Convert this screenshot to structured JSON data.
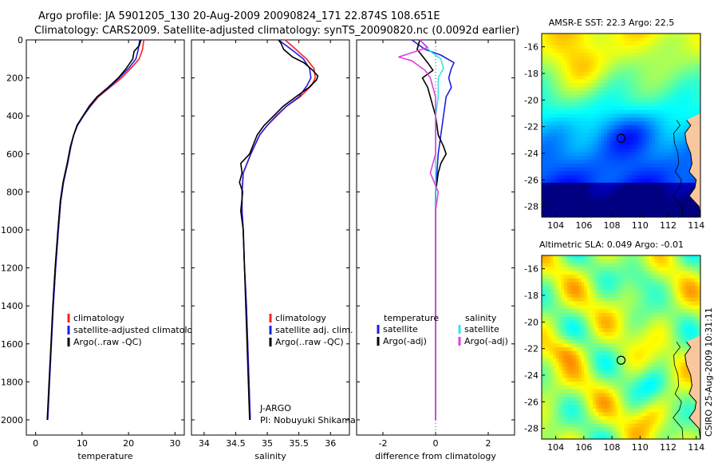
{
  "header": {
    "line1": "Argo profile: JA 5901205_130 20-Aug-2009 20090824_171 22.874S 108.651E",
    "line2": "Climatology: CARS2009. Satellite-adjusted climatology: synTS_20090820.nc (0.0092d earlier)"
  },
  "side_label": "CSIRO 25-Aug-2009 10:31:11",
  "colors": {
    "climatology": "#ff2020",
    "satellite": "#1e1ee6",
    "argo": "#000000",
    "sal_satellite": "#30e8e8",
    "sal_argo": "#e040e0",
    "land": "#f9c79e"
  },
  "chart_data": [
    {
      "type": "line",
      "xlabel": "temperature",
      "xlim": [
        -2,
        32
      ],
      "xticks": [
        0,
        10,
        20,
        30
      ],
      "ylim": [
        2080,
        0
      ],
      "yticks": [
        0,
        200,
        400,
        600,
        800,
        1000,
        1200,
        1400,
        1600,
        1800,
        2000
      ],
      "legend": [
        "climatology",
        "satellite-adjusted climatology",
        "Argo(..raw -QC)"
      ],
      "series": [
        {
          "name": "climatology",
          "color": "#ff2020",
          "points": [
            [
              23.3,
              0
            ],
            [
              23.0,
              50
            ],
            [
              22.3,
              100
            ],
            [
              20.5,
              150
            ],
            [
              18.5,
              200
            ],
            [
              16.0,
              250
            ],
            [
              13.5,
              300
            ],
            [
              11.8,
              350
            ],
            [
              10.3,
              400
            ],
            [
              9.0,
              450
            ],
            [
              8.2,
              500
            ],
            [
              7.6,
              560
            ],
            [
              6.9,
              650
            ],
            [
              6.0,
              750
            ],
            [
              5.4,
              850
            ],
            [
              4.9,
              1000
            ],
            [
              4.3,
              1200
            ],
            [
              3.8,
              1400
            ],
            [
              3.4,
              1600
            ],
            [
              3.0,
              1800
            ],
            [
              2.6,
              2000
            ]
          ]
        },
        {
          "name": "satellite",
          "color": "#1e1ee6",
          "points": [
            [
              22.4,
              0
            ],
            [
              22.1,
              50
            ],
            [
              21.6,
              100
            ],
            [
              20.0,
              150
            ],
            [
              18.0,
              200
            ],
            [
              15.8,
              250
            ],
            [
              13.3,
              300
            ],
            [
              11.7,
              350
            ],
            [
              10.3,
              400
            ],
            [
              9.0,
              450
            ],
            [
              8.2,
              500
            ],
            [
              7.6,
              560
            ],
            [
              6.9,
              650
            ],
            [
              6.0,
              750
            ],
            [
              5.4,
              850
            ],
            [
              4.9,
              1000
            ],
            [
              4.3,
              1200
            ],
            [
              3.8,
              1400
            ],
            [
              3.4,
              1600
            ],
            [
              3.0,
              1800
            ],
            [
              2.6,
              2000
            ]
          ]
        },
        {
          "name": "argo",
          "color": "#000000",
          "points": [
            [
              22.7,
              0
            ],
            [
              22.3,
              30
            ],
            [
              21.2,
              60
            ],
            [
              20.9,
              100
            ],
            [
              19.5,
              150
            ],
            [
              17.8,
              200
            ],
            [
              15.6,
              250
            ],
            [
              13.2,
              300
            ],
            [
              11.5,
              350
            ],
            [
              10.2,
              400
            ],
            [
              8.9,
              450
            ],
            [
              8.2,
              500
            ],
            [
              7.5,
              560
            ],
            [
              6.8,
              650
            ],
            [
              5.9,
              750
            ],
            [
              5.3,
              850
            ],
            [
              4.8,
              1000
            ],
            [
              4.2,
              1200
            ],
            [
              3.7,
              1400
            ],
            [
              3.3,
              1600
            ],
            [
              2.9,
              1800
            ],
            [
              2.5,
              2000
            ]
          ]
        }
      ]
    },
    {
      "type": "line",
      "xlabel": "salinity",
      "xlim": [
        33.8,
        36.3
      ],
      "xticks": [
        34,
        34.5,
        35,
        35.5,
        36
      ],
      "ylim": [
        2080,
        0
      ],
      "legend": [
        "climatology",
        "satellite adj. clim.",
        "Argo(..raw -QC)"
      ],
      "annotation": [
        "J-ARGO",
        "PI: Nobuyuki Shikama"
      ],
      "series": [
        {
          "name": "climatology",
          "color": "#ff2020",
          "points": [
            [
              35.28,
              0
            ],
            [
              35.42,
              40
            ],
            [
              35.62,
              100
            ],
            [
              35.74,
              150
            ],
            [
              35.76,
              200
            ],
            [
              35.7,
              240
            ],
            [
              35.52,
              300
            ],
            [
              35.3,
              350
            ],
            [
              35.15,
              400
            ],
            [
              35.0,
              450
            ],
            [
              34.88,
              500
            ],
            [
              34.74,
              600
            ],
            [
              34.62,
              700
            ],
            [
              34.6,
              800
            ],
            [
              34.6,
              900
            ],
            [
              34.62,
              1000
            ],
            [
              34.64,
              1200
            ],
            [
              34.67,
              1400
            ],
            [
              34.69,
              1600
            ],
            [
              34.71,
              1800
            ],
            [
              34.73,
              2000
            ]
          ]
        },
        {
          "name": "satellite",
          "color": "#1e1ee6",
          "points": [
            [
              35.18,
              0
            ],
            [
              35.26,
              20
            ],
            [
              35.42,
              60
            ],
            [
              35.57,
              100
            ],
            [
              35.67,
              150
            ],
            [
              35.69,
              200
            ],
            [
              35.63,
              240
            ],
            [
              35.5,
              300
            ],
            [
              35.3,
              350
            ],
            [
              35.14,
              400
            ],
            [
              35.0,
              450
            ],
            [
              34.88,
              500
            ],
            [
              34.74,
              600
            ],
            [
              34.62,
              700
            ],
            [
              34.6,
              800
            ],
            [
              34.6,
              900
            ],
            [
              34.62,
              1000
            ],
            [
              34.64,
              1200
            ],
            [
              34.67,
              1400
            ],
            [
              34.69,
              1600
            ],
            [
              34.71,
              1800
            ],
            [
              34.73,
              2000
            ]
          ]
        },
        {
          "name": "argo",
          "color": "#000000",
          "points": [
            [
              35.18,
              0
            ],
            [
              35.22,
              20
            ],
            [
              35.26,
              50
            ],
            [
              35.4,
              90
            ],
            [
              35.58,
              120
            ],
            [
              35.72,
              160
            ],
            [
              35.8,
              190
            ],
            [
              35.78,
              210
            ],
            [
              35.66,
              250
            ],
            [
              35.45,
              300
            ],
            [
              35.25,
              350
            ],
            [
              35.1,
              400
            ],
            [
              34.95,
              450
            ],
            [
              34.84,
              500
            ],
            [
              34.72,
              600
            ],
            [
              34.58,
              650
            ],
            [
              34.6,
              700
            ],
            [
              34.56,
              750
            ],
            [
              34.61,
              800
            ],
            [
              34.58,
              900
            ],
            [
              34.62,
              1000
            ],
            [
              34.64,
              1200
            ],
            [
              34.66,
              1400
            ],
            [
              34.68,
              1600
            ],
            [
              34.7,
              1800
            ],
            [
              34.72,
              2000
            ]
          ]
        }
      ]
    },
    {
      "type": "line",
      "xlabel": "difference from climatology",
      "xlim": [
        -3,
        3
      ],
      "xticks": [
        -2,
        0,
        2
      ],
      "ylim": [
        2080,
        0
      ],
      "legend_titles": [
        "temperature",
        "salinity"
      ],
      "legend_left": [
        "satellite",
        "Argo(-adj)"
      ],
      "legend_right": [
        "satellite",
        "Argo(-adj)"
      ],
      "series": [
        {
          "name": "temperature satellite",
          "color": "#1e1ee6",
          "points": [
            [
              -0.9,
              0
            ],
            [
              -0.4,
              50
            ],
            [
              0.2,
              80
            ],
            [
              0.7,
              120
            ],
            [
              0.6,
              150
            ],
            [
              0.5,
              200
            ],
            [
              0.6,
              250
            ],
            [
              0.4,
              300
            ],
            [
              0.3,
              400
            ],
            [
              0.2,
              500
            ],
            [
              0.1,
              600
            ],
            [
              0.0,
              800
            ],
            [
              0.0,
              1200
            ],
            [
              0.0,
              1600
            ],
            [
              0.0,
              2000
            ]
          ]
        },
        {
          "name": "temperature argo",
          "color": "#000000",
          "points": [
            [
              -0.6,
              0
            ],
            [
              -0.7,
              50
            ],
            [
              -0.3,
              120
            ],
            [
              -0.1,
              160
            ],
            [
              -0.5,
              200
            ],
            [
              -0.3,
              250
            ],
            [
              -0.2,
              300
            ],
            [
              -0.1,
              350
            ],
            [
              0.0,
              400
            ],
            [
              0.1,
              500
            ],
            [
              0.3,
              560
            ],
            [
              0.4,
              600
            ],
            [
              0.2,
              650
            ],
            [
              0.1,
              700
            ],
            [
              0.0,
              800
            ],
            [
              0.0,
              1000
            ],
            [
              0.0,
              1400
            ],
            [
              0.0,
              2000
            ]
          ]
        },
        {
          "name": "salinity satellite",
          "color": "#30e8e8",
          "points": [
            [
              -0.6,
              0
            ],
            [
              -0.2,
              60
            ],
            [
              0.2,
              100
            ],
            [
              0.3,
              150
            ],
            [
              0.1,
              200
            ],
            [
              0.1,
              300
            ],
            [
              0.0,
              400
            ],
            [
              0.0,
              600
            ],
            [
              0.0,
              1000
            ],
            [
              0.0,
              2000
            ]
          ]
        },
        {
          "name": "salinity argo",
          "color": "#e040e0",
          "points": [
            [
              -0.6,
              0
            ],
            [
              -0.3,
              40
            ],
            [
              -1.4,
              90
            ],
            [
              -0.9,
              110
            ],
            [
              -0.4,
              160
            ],
            [
              -0.2,
              200
            ],
            [
              0.0,
              300
            ],
            [
              0.0,
              400
            ],
            [
              0.0,
              600
            ],
            [
              -0.2,
              700
            ],
            [
              0.1,
              800
            ],
            [
              0.0,
              900
            ],
            [
              0.0,
              1000
            ],
            [
              0.0,
              2000
            ]
          ]
        }
      ]
    },
    {
      "type": "heatmap",
      "title": "AMSR-E SST: 22.3 Argo: 22.5",
      "xticks": [
        104,
        106,
        108,
        110,
        112,
        114
      ],
      "yticks": [
        -16,
        -18,
        -20,
        -22,
        -24,
        -26,
        -28
      ],
      "xlim": [
        103,
        114.3
      ],
      "ylim": [
        -15,
        -28.8
      ],
      "marker": [
        108.651,
        -22.874
      ],
      "coast": [
        [
          113.3,
          -21.5
        ],
        [
          113.6,
          -21.9
        ],
        [
          113.2,
          -22.5
        ],
        [
          113.3,
          -23.2
        ],
        [
          113.6,
          -24.0
        ],
        [
          113.7,
          -24.8
        ],
        [
          113.5,
          -25.4
        ],
        [
          114.0,
          -26.0
        ],
        [
          113.9,
          -26.6
        ],
        [
          113.5,
          -27.2
        ],
        [
          114.2,
          -28.0
        ],
        [
          114.3,
          -28.8
        ]
      ],
      "cols": 56,
      "rows": 48,
      "field": "sst"
    },
    {
      "type": "heatmap",
      "title": "Altimetric SLA: 0.049 Argo: -0.01",
      "xticks": [
        104,
        106,
        108,
        110,
        112,
        114
      ],
      "yticks": [
        -16,
        -18,
        -20,
        -22,
        -24,
        -26,
        -28
      ],
      "xlim": [
        103,
        114.3
      ],
      "ylim": [
        -15,
        -28.8
      ],
      "marker": [
        108.651,
        -22.874
      ],
      "coast": [
        [
          113.3,
          -21.5
        ],
        [
          113.6,
          -21.9
        ],
        [
          113.2,
          -22.5
        ],
        [
          113.3,
          -23.2
        ],
        [
          113.6,
          -24.0
        ],
        [
          113.7,
          -24.8
        ],
        [
          113.5,
          -25.4
        ],
        [
          114.0,
          -26.0
        ],
        [
          113.9,
          -26.6
        ],
        [
          113.5,
          -27.2
        ],
        [
          114.2,
          -28.0
        ],
        [
          114.3,
          -28.8
        ]
      ],
      "cols": 56,
      "rows": 48,
      "field": "sla"
    }
  ]
}
